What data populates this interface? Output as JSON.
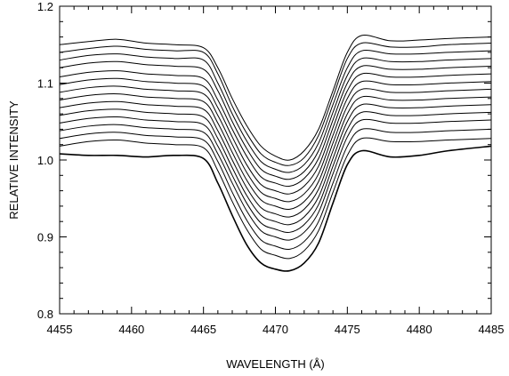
{
  "chart_data": {
    "type": "line",
    "title": "",
    "xlabel": "WAVELENGTH (Å)",
    "ylabel": "RELATIVE INTENSITY",
    "xlim": [
      4455,
      4485
    ],
    "ylim": [
      0.8,
      1.2
    ],
    "x_ticks": [
      4455,
      4460,
      4465,
      4470,
      4475,
      4480,
      4485
    ],
    "x_tick_labels": [
      "4455",
      "4460",
      "4465",
      "4470",
      "4475",
      "4480",
      "4485"
    ],
    "y_ticks": [
      0.8,
      0.9,
      1.0,
      1.1,
      1.2
    ],
    "y_tick_labels": [
      "0.8",
      "0.9",
      "1.0",
      "1.1",
      "1.2"
    ],
    "grid": false,
    "legend": "none",
    "line_color": "#000000",
    "x": [
      4455,
      4457,
      4459,
      4461,
      4463,
      4465,
      4466,
      4467,
      4468,
      4469,
      4470,
      4471,
      4472,
      4473,
      4474,
      4475,
      4476,
      4478,
      4480,
      4482,
      4485
    ],
    "series": [
      {
        "values": [
          1.15,
          1.154,
          1.157,
          1.152,
          1.15,
          1.146,
          1.12,
          1.08,
          1.045,
          1.018,
          1.005,
          1.0,
          1.012,
          1.04,
          1.09,
          1.14,
          1.162,
          1.155,
          1.156,
          1.158,
          1.16
        ]
      },
      {
        "values": [
          1.14,
          1.145,
          1.148,
          1.144,
          1.142,
          1.14,
          1.112,
          1.07,
          1.035,
          1.008,
          0.997,
          0.993,
          1.003,
          1.032,
          1.082,
          1.132,
          1.152,
          1.147,
          1.147,
          1.15,
          1.152
        ]
      },
      {
        "values": [
          1.13,
          1.136,
          1.138,
          1.134,
          1.132,
          1.13,
          1.1,
          1.06,
          1.025,
          0.998,
          0.988,
          0.984,
          0.994,
          1.022,
          1.072,
          1.12,
          1.142,
          1.138,
          1.138,
          1.14,
          1.142
        ]
      },
      {
        "values": [
          1.12,
          1.126,
          1.128,
          1.124,
          1.122,
          1.118,
          1.09,
          1.05,
          1.015,
          0.988,
          0.979,
          0.975,
          0.985,
          1.012,
          1.062,
          1.11,
          1.132,
          1.128,
          1.128,
          1.13,
          1.132
        ]
      },
      {
        "values": [
          1.108,
          1.114,
          1.116,
          1.112,
          1.11,
          1.106,
          1.078,
          1.04,
          1.005,
          0.978,
          0.97,
          0.966,
          0.976,
          1.002,
          1.052,
          1.1,
          1.122,
          1.118,
          1.118,
          1.12,
          1.122
        ]
      },
      {
        "values": [
          1.098,
          1.104,
          1.106,
          1.102,
          1.1,
          1.096,
          1.068,
          1.03,
          0.994,
          0.968,
          0.96,
          0.956,
          0.966,
          0.992,
          1.042,
          1.09,
          1.112,
          1.108,
          1.108,
          1.11,
          1.112
        ]
      },
      {
        "values": [
          1.088,
          1.094,
          1.096,
          1.092,
          1.09,
          1.086,
          1.058,
          1.02,
          0.984,
          0.958,
          0.95,
          0.946,
          0.956,
          0.982,
          1.032,
          1.08,
          1.102,
          1.098,
          1.098,
          1.1,
          1.102
        ]
      },
      {
        "values": [
          1.078,
          1.084,
          1.086,
          1.082,
          1.08,
          1.076,
          1.048,
          1.01,
          0.974,
          0.948,
          0.94,
          0.936,
          0.946,
          0.972,
          1.022,
          1.07,
          1.092,
          1.088,
          1.088,
          1.09,
          1.092
        ]
      },
      {
        "values": [
          1.068,
          1.074,
          1.076,
          1.072,
          1.07,
          1.066,
          1.038,
          1.0,
          0.964,
          0.938,
          0.93,
          0.926,
          0.936,
          0.962,
          1.012,
          1.06,
          1.082,
          1.078,
          1.078,
          1.08,
          1.082
        ]
      },
      {
        "values": [
          1.058,
          1.064,
          1.066,
          1.062,
          1.06,
          1.056,
          1.028,
          0.99,
          0.954,
          0.928,
          0.92,
          0.916,
          0.926,
          0.952,
          1.002,
          1.05,
          1.072,
          1.068,
          1.068,
          1.07,
          1.072
        ]
      },
      {
        "values": [
          1.048,
          1.054,
          1.056,
          1.052,
          1.05,
          1.046,
          1.018,
          0.98,
          0.944,
          0.918,
          0.91,
          0.906,
          0.916,
          0.942,
          0.992,
          1.04,
          1.062,
          1.058,
          1.058,
          1.06,
          1.062
        ]
      },
      {
        "values": [
          1.038,
          1.044,
          1.046,
          1.042,
          1.04,
          1.036,
          1.008,
          0.97,
          0.934,
          0.908,
          0.9,
          0.896,
          0.906,
          0.932,
          0.982,
          1.03,
          1.052,
          1.048,
          1.048,
          1.05,
          1.052
        ]
      },
      {
        "values": [
          1.028,
          1.034,
          1.036,
          1.032,
          1.03,
          1.026,
          0.998,
          0.958,
          0.922,
          0.896,
          0.888,
          0.884,
          0.894,
          0.92,
          0.97,
          1.018,
          1.04,
          1.036,
          1.036,
          1.038,
          1.04
        ]
      },
      {
        "values": [
          1.018,
          1.024,
          1.026,
          1.022,
          1.02,
          1.016,
          0.986,
          0.946,
          0.91,
          0.884,
          0.876,
          0.872,
          0.882,
          0.908,
          0.958,
          1.006,
          1.028,
          1.024,
          1.024,
          1.026,
          1.028
        ]
      },
      {
        "values": [
          1.008,
          1.006,
          1.006,
          1.004,
          1.006,
          1.002,
          0.97,
          0.928,
          0.89,
          0.866,
          0.858,
          0.856,
          0.866,
          0.892,
          0.944,
          0.994,
          1.012,
          1.004,
          1.006,
          1.012,
          1.018
        ]
      }
    ]
  }
}
